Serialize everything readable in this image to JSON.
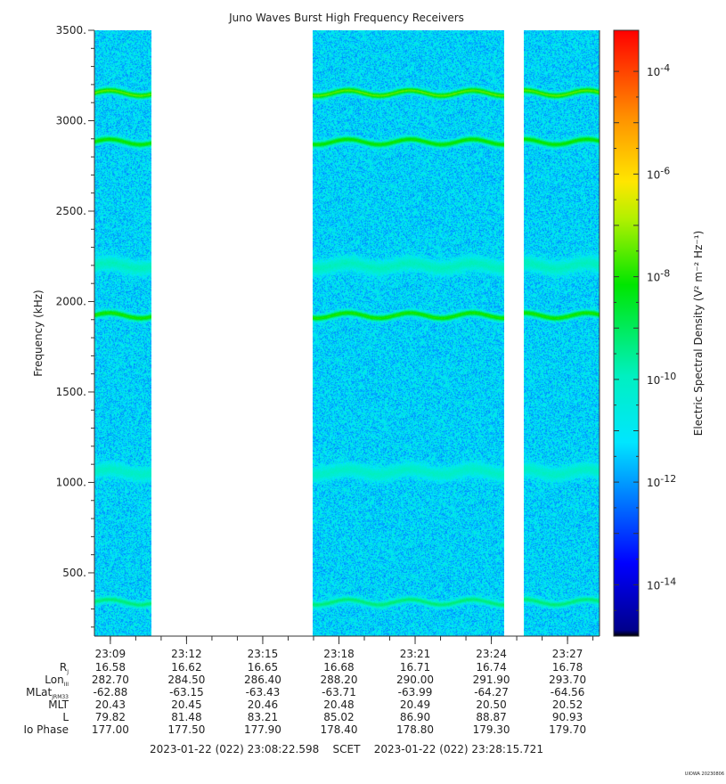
{
  "chart_data": {
    "type": "heatmap",
    "title": "Juno Waves Burst High Frequency Receivers",
    "ylabel": "Frequency (kHz)",
    "ylim": [
      150,
      3500
    ],
    "yticks": [
      {
        "v": 500,
        "label": "500."
      },
      {
        "v": 1000,
        "label": "1000."
      },
      {
        "v": 1500,
        "label": "1500."
      },
      {
        "v": 2000,
        "label": "2000."
      },
      {
        "v": 2500,
        "label": "2500."
      },
      {
        "v": 3000,
        "label": "3000."
      },
      {
        "v": 3500,
        "label": "3500."
      }
    ],
    "x_range_minutes": [
      0,
      19.886
    ],
    "xticks": [
      {
        "m": 0.627,
        "label": "23:09"
      },
      {
        "m": 3.627,
        "label": "23:12"
      },
      {
        "m": 6.627,
        "label": "23:15"
      },
      {
        "m": 9.627,
        "label": "23:18"
      },
      {
        "m": 12.627,
        "label": "23:21"
      },
      {
        "m": 15.627,
        "label": "23:24"
      },
      {
        "m": 18.627,
        "label": "23:27"
      }
    ],
    "data_segments_minutes": [
      [
        0,
        2.25
      ],
      [
        8.6,
        16.15
      ],
      [
        16.9,
        19.886
      ]
    ],
    "background_level_log10": -12,
    "emission_bands": [
      {
        "freq_khz": 3155,
        "log10_density": -9.0
      },
      {
        "freq_khz": 2885,
        "log10_density": -9.5
      },
      {
        "freq_khz": 2200,
        "log10_density": -11.2
      },
      {
        "freq_khz": 1925,
        "log10_density": -9.4
      },
      {
        "freq_khz": 1060,
        "log10_density": -11.3
      },
      {
        "freq_khz": 340,
        "log10_density": -10.6
      }
    ],
    "colorbar": {
      "label": "Electric Spectral Density (V² m⁻² Hz⁻¹)",
      "log_range": [
        -15,
        -3.2
      ],
      "ticks": [
        {
          "exp": -14,
          "label": "10",
          "sup": "-14"
        },
        {
          "exp": -12,
          "label": "10",
          "sup": "-12"
        },
        {
          "exp": -10,
          "label": "10",
          "sup": "-10"
        },
        {
          "exp": -8,
          "label": "10",
          "sup": "-8"
        },
        {
          "exp": -6,
          "label": "10",
          "sup": "-6"
        },
        {
          "exp": -4,
          "label": "10",
          "sup": "-4"
        }
      ]
    }
  },
  "ephemeris": {
    "labels": [
      {
        "main": "R",
        "sub": "J"
      },
      {
        "main": "Lon",
        "sub": "III"
      },
      {
        "main": "MLat",
        "sub": "JRM33"
      },
      {
        "main": "MLT",
        "sub": ""
      },
      {
        "main": "L",
        "sub": ""
      },
      {
        "main": "Io Phase",
        "sub": ""
      }
    ],
    "columns": [
      [
        "16.58",
        "282.70",
        "-62.88",
        "20.43",
        "79.82",
        "177.00"
      ],
      [
        "16.62",
        "284.50",
        "-63.15",
        "20.45",
        "81.48",
        "177.50"
      ],
      [
        "16.65",
        "286.40",
        "-63.43",
        "20.46",
        "83.21",
        "177.90"
      ],
      [
        "16.68",
        "288.20",
        "-63.71",
        "20.48",
        "85.02",
        "178.40"
      ],
      [
        "16.71",
        "290.00",
        "-63.99",
        "20.49",
        "86.90",
        "178.80"
      ],
      [
        "16.74",
        "291.90",
        "-64.27",
        "20.50",
        "88.87",
        "179.30"
      ],
      [
        "16.78",
        "293.70",
        "-64.56",
        "20.52",
        "90.93",
        "179.70"
      ]
    ],
    "time_start": "2023-01-22 (022) 23:08:22.598",
    "time_label": "SCET",
    "time_end": "2023-01-22 (022) 23:28:15.721"
  },
  "credit": "UIOWA 20230806"
}
